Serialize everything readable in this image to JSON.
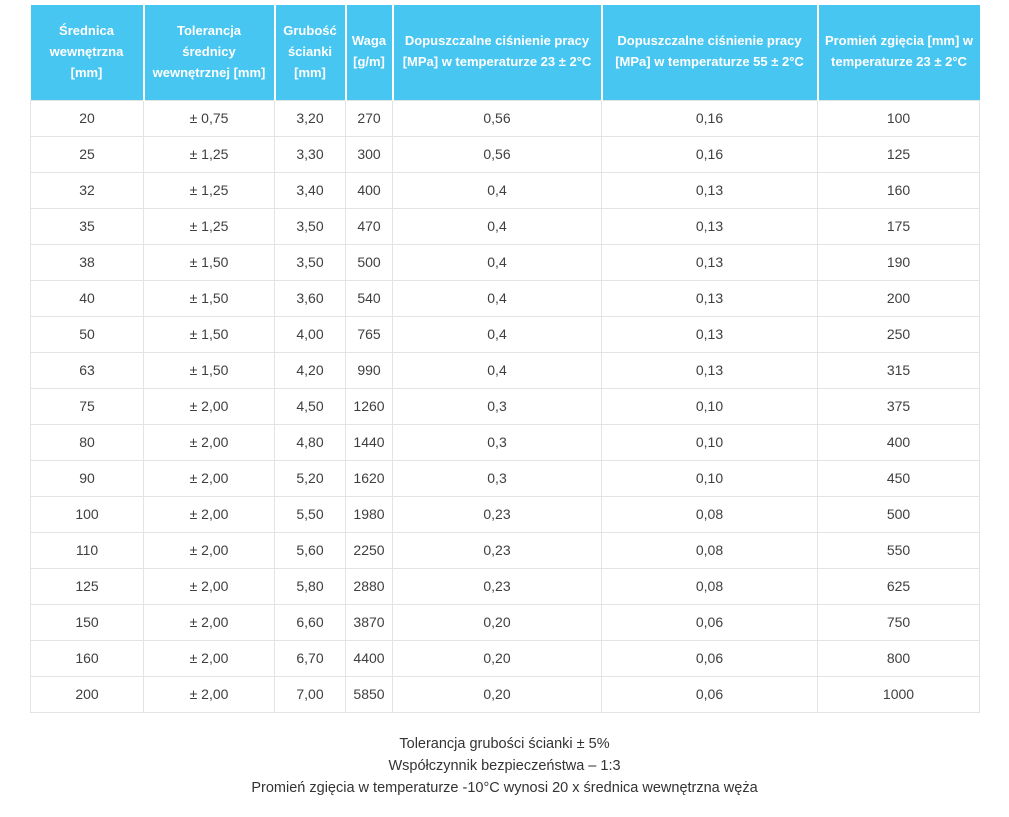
{
  "style": {
    "header_bg": "#47c6f1",
    "header_text": "#ffffff",
    "body_text": "#3f3f3f",
    "border_color": "#e3e3e3",
    "notes_text": "#333333"
  },
  "chart_data": {
    "type": "table",
    "columns": [
      "Średnica wewnętrzna [mm]",
      "Tolerancja średnicy wewnętrznej [mm]",
      "Grubość ścianki [mm]",
      "Waga [g/m]",
      "Dopuszczalne ciśnienie pracy [MPa] w temperaturze 23 ± 2°C",
      "Dopuszczalne ciśnienie pracy [MPa] w temperaturze 55 ± 2°C",
      "Promień zgięcia [mm] w temperaturze 23 ± 2°C"
    ],
    "rows": [
      [
        "20",
        "± 0,75",
        "3,20",
        "270",
        "0,56",
        "0,16",
        "100"
      ],
      [
        "25",
        "± 1,25",
        "3,30",
        "300",
        "0,56",
        "0,16",
        "125"
      ],
      [
        "32",
        "± 1,25",
        "3,40",
        "400",
        "0,4",
        "0,13",
        "160"
      ],
      [
        "35",
        "± 1,25",
        "3,50",
        "470",
        "0,4",
        "0,13",
        "175"
      ],
      [
        "38",
        "± 1,50",
        "3,50",
        "500",
        "0,4",
        "0,13",
        "190"
      ],
      [
        "40",
        "± 1,50",
        "3,60",
        "540",
        "0,4",
        "0,13",
        "200"
      ],
      [
        "50",
        "± 1,50",
        "4,00",
        "765",
        "0,4",
        "0,13",
        "250"
      ],
      [
        "63",
        "± 1,50",
        "4,20",
        "990",
        "0,4",
        "0,13",
        "315"
      ],
      [
        "75",
        "± 2,00",
        "4,50",
        "1260",
        "0,3",
        "0,10",
        "375"
      ],
      [
        "80",
        "± 2,00",
        "4,80",
        "1440",
        "0,3",
        "0,10",
        "400"
      ],
      [
        "90",
        "± 2,00",
        "5,20",
        "1620",
        "0,3",
        "0,10",
        "450"
      ],
      [
        "100",
        "± 2,00",
        "5,50",
        "1980",
        "0,23",
        "0,08",
        "500"
      ],
      [
        "110",
        "± 2,00",
        "5,60",
        "2250",
        "0,23",
        "0,08",
        "550"
      ],
      [
        "125",
        "± 2,00",
        "5,80",
        "2880",
        "0,23",
        "0,08",
        "625"
      ],
      [
        "150",
        "± 2,00",
        "6,60",
        "3870",
        "0,20",
        "0,06",
        "750"
      ],
      [
        "160",
        "± 2,00",
        "6,70",
        "4400",
        "0,20",
        "0,06",
        "800"
      ],
      [
        "200",
        "± 2,00",
        "7,00",
        "5850",
        "0,20",
        "0,06",
        "1000"
      ]
    ],
    "notes": [
      "Tolerancja grubości ścianki ± 5%",
      "Współczynnik bezpieczeństwa – 1:3",
      "Promień zgięcia w temperaturze -10°C wynosi 20 x średnica wewnętrzna węża"
    ]
  }
}
